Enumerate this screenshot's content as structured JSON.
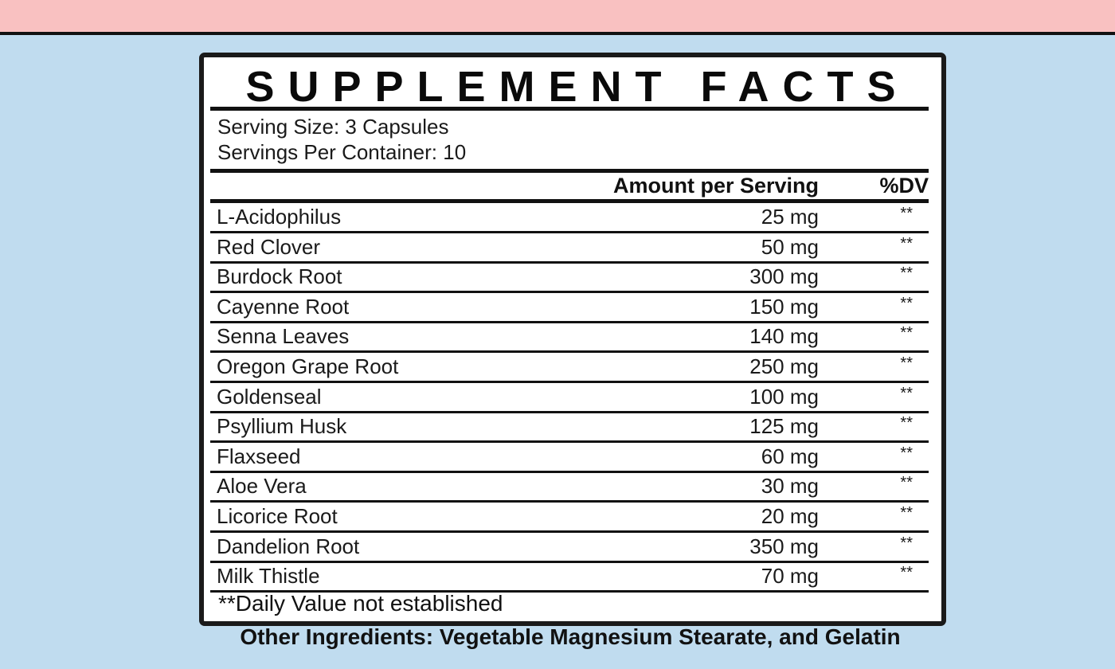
{
  "title": "SUPPLEMENT FACTS",
  "serving_size": "Serving Size: 3 Capsules",
  "servings_per_container": "Servings Per Container: 10",
  "header": {
    "amount": "Amount per Serving",
    "dv": "%DV"
  },
  "ingredients": [
    {
      "name": "L-Acidophilus",
      "amount": "25 mg",
      "dv": "**"
    },
    {
      "name": "Red Clover",
      "amount": "50 mg",
      "dv": "**"
    },
    {
      "name": "Burdock Root",
      "amount": "300 mg",
      "dv": "**"
    },
    {
      "name": "Cayenne Root",
      "amount": "150 mg",
      "dv": "**"
    },
    {
      "name": "Senna Leaves",
      "amount": "140 mg",
      "dv": "**"
    },
    {
      "name": "Oregon Grape Root",
      "amount": "250 mg",
      "dv": "**"
    },
    {
      "name": "Goldenseal",
      "amount": "100 mg",
      "dv": "**"
    },
    {
      "name": "Psyllium Husk",
      "amount": "125 mg",
      "dv": "**"
    },
    {
      "name": "Flaxseed",
      "amount": "60 mg",
      "dv": "**"
    },
    {
      "name": "Aloe Vera",
      "amount": "30 mg",
      "dv": "**"
    },
    {
      "name": "Licorice Root",
      "amount": "20 mg",
      "dv": "**"
    },
    {
      "name": "Dandelion Root",
      "amount": "350 mg",
      "dv": "**"
    },
    {
      "name": "Milk Thistle",
      "amount": "70 mg",
      "dv": "**"
    }
  ],
  "footnote": "**Daily Value not established",
  "other_ingredients": "Other Ingredients: Vegetable Magnesium Stearate, and Gelatin",
  "colors": {
    "background": "#c0dcef",
    "top_band": "#f9c1c1",
    "panel": "#ffffff",
    "border": "#1a1a1a"
  }
}
